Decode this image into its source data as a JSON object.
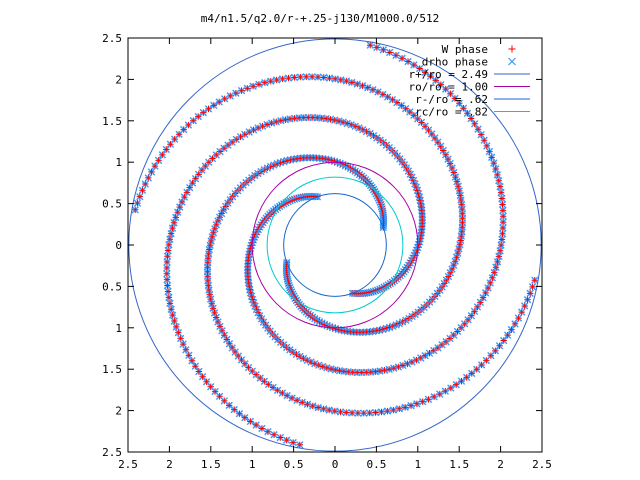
{
  "chart_data": {
    "type": "scatter",
    "title": "m4/n1.5/q2.0/r-+.25-j130/M1000.0/512",
    "xlim": [
      -2.5,
      2.5
    ],
    "ylim": [
      -2.5,
      2.5
    ],
    "x_tick_labels": [
      "2.5",
      "2",
      "1.5",
      "1",
      "0.5",
      "0",
      "0.5",
      "1",
      "1.5",
      "2",
      "2.5"
    ],
    "y_tick_labels": [
      "2.5",
      "2",
      "1.5",
      "1",
      "0.5",
      "0",
      "0.5",
      "1",
      "1.5",
      "2",
      "2.5"
    ],
    "legend_position": "top-right",
    "legend": [
      {
        "label": "W phase",
        "marker": "+",
        "color": "#ff0000"
      },
      {
        "label": "drho phase",
        "marker": "x",
        "color": "#3399ff"
      },
      {
        "label": "r+/ro = 2.49",
        "marker": "line",
        "color": "#3366cc"
      },
      {
        "label": "ro/ro = 1.00",
        "marker": "line",
        "color": "#aa00aa"
      },
      {
        "label": "r-/ro = .62",
        "marker": "line",
        "color": "#1a66cc"
      },
      {
        "label": "rc/ro = .82",
        "marker": "line",
        "color": "#00cccc"
      }
    ],
    "circles": [
      {
        "name": "r+/ro",
        "radius": 2.49,
        "color": "#3366cc"
      },
      {
        "name": "ro/ro",
        "radius": 1.0,
        "color": "#aa00aa"
      },
      {
        "name": "r-/ro",
        "radius": 0.62,
        "color": "#1a66cc"
      },
      {
        "name": "rc/ro",
        "radius": 0.82,
        "color": "#00cccc"
      }
    ],
    "spiral_arms": {
      "count": 4,
      "r_start": 0.62,
      "r_end": 2.45,
      "winding_deg": 330,
      "rotation_offset_deg": 20
    }
  }
}
